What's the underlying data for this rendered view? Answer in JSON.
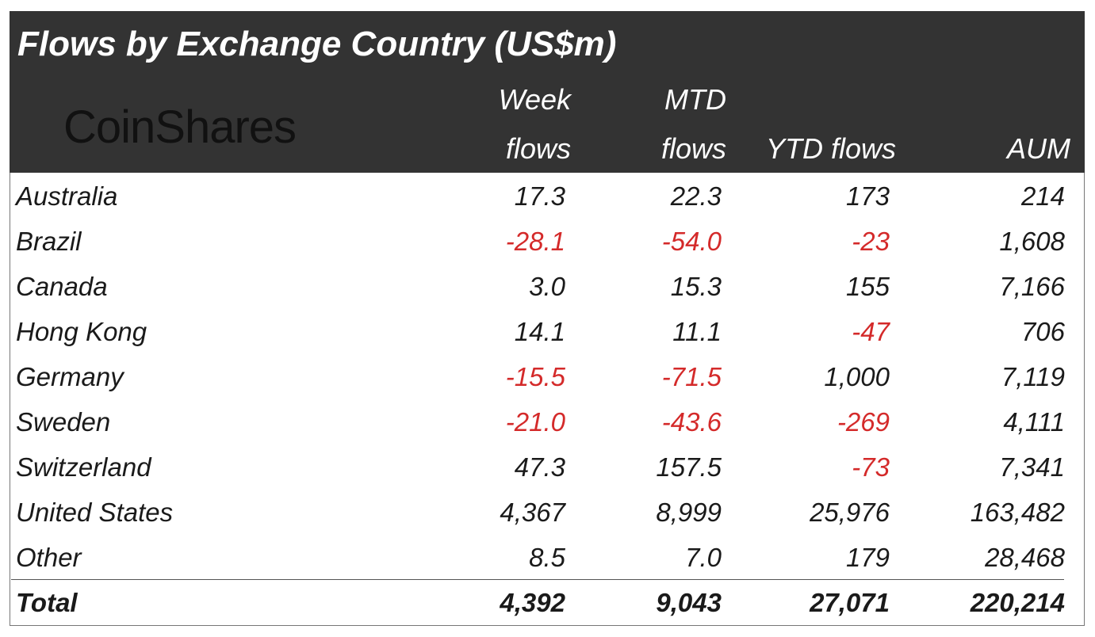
{
  "header": {
    "title": "Flows by Exchange Country (US$m)",
    "logo": "CoinShares"
  },
  "table": {
    "columns": [
      [
        "Week",
        "flows"
      ],
      [
        "MTD",
        "flows"
      ],
      [
        "YTD flows"
      ],
      [
        "AUM"
      ]
    ],
    "rows": [
      [
        "Australia",
        "17.3",
        "22.3",
        "173",
        "214"
      ],
      [
        "Brazil",
        "-28.1",
        "-54.0",
        "-23",
        "1,608"
      ],
      [
        "Canada",
        "3.0",
        "15.3",
        "155",
        "7,166"
      ],
      [
        "Hong Kong",
        "14.1",
        "11.1",
        "-47",
        "706"
      ],
      [
        "Germany",
        "-15.5",
        "-71.5",
        "1,000",
        "7,119"
      ],
      [
        "Sweden",
        "-21.0",
        "-43.6",
        "-269",
        "4,111"
      ],
      [
        "Switzerland",
        "47.3",
        "157.5",
        "-73",
        "7,341"
      ],
      [
        "United States",
        "4,367",
        "8,999",
        "25,976",
        "163,482"
      ],
      [
        "Other",
        "8.5",
        "7.0",
        "179",
        "28,468"
      ]
    ],
    "total": [
      "Total",
      "4,392",
      "9,043",
      "27,071",
      "220,214"
    ]
  }
}
